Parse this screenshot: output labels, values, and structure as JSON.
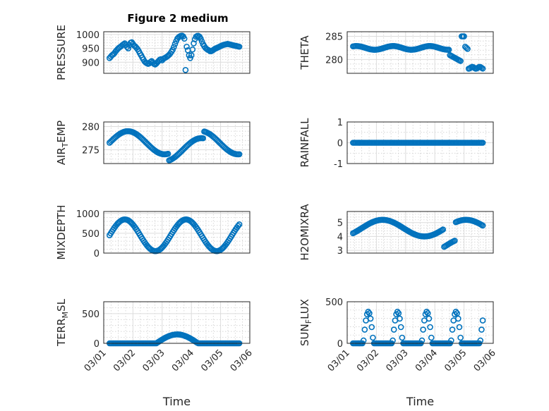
{
  "figure": {
    "title": "Figure 2 medium"
  },
  "style": {
    "marker_color": "#0072bd"
  },
  "chart_data": [
    {
      "id": "pressure",
      "type": "scatter",
      "title": "Figure 2 medium",
      "ylabel": "PRESSURE",
      "ylabel_base": "PRESSURE",
      "ylabel_sub": "",
      "ylabel_rest": "",
      "ylim": [
        860,
        1010
      ],
      "yticks": [
        900,
        950,
        1000
      ],
      "yminor": [
        870,
        880,
        890,
        910,
        920,
        930,
        940,
        960,
        970,
        980,
        990
      ],
      "xlim": [
        0,
        5
      ],
      "column": 0,
      "row": 0,
      "show_xticks": false,
      "x": [
        0.2,
        0.24,
        0.28,
        0.32,
        0.36,
        0.4,
        0.44,
        0.48,
        0.52,
        0.56,
        0.6,
        0.64,
        0.68,
        0.72,
        0.76,
        0.8,
        0.84,
        0.88,
        0.92,
        0.96,
        1.0,
        1.04,
        1.08,
        1.12,
        1.16,
        1.2,
        1.24,
        1.28,
        1.32,
        1.36,
        1.4,
        1.44,
        1.48,
        1.52,
        1.56,
        1.6,
        1.64,
        1.68,
        1.72,
        1.76,
        1.8,
        1.84,
        1.88,
        1.92,
        1.96,
        2.0,
        2.04,
        2.08,
        2.12,
        2.16,
        2.2,
        2.24,
        2.28,
        2.32,
        2.36,
        2.4,
        2.44,
        2.48,
        2.52,
        2.56,
        2.6,
        2.64,
        2.68,
        2.72,
        2.76,
        2.8,
        2.84,
        2.88,
        2.92,
        2.96,
        3.0,
        3.04,
        3.08,
        3.12,
        3.16,
        3.2,
        3.24,
        3.28,
        3.32,
        3.36,
        3.4,
        3.44,
        3.48,
        3.52,
        3.56,
        3.6,
        3.64,
        3.68,
        3.72,
        3.76,
        3.8,
        3.84,
        3.88,
        3.92,
        3.96,
        4.0,
        4.04,
        4.08,
        4.12,
        4.16,
        4.2,
        4.24,
        4.28,
        4.32,
        4.36,
        4.4,
        4.44,
        4.48,
        4.52,
        4.56,
        4.6,
        4.64
      ],
      "y": [
        915,
        920,
        925,
        928,
        932,
        938,
        943,
        948,
        952,
        955,
        958,
        962,
        965,
        968,
        962,
        955,
        950,
        962,
        970,
        972,
        966,
        960,
        957,
        952,
        947,
        940,
        932,
        925,
        917,
        910,
        903,
        899,
        896,
        894,
        896,
        901,
        904,
        899,
        894,
        892,
        895,
        900,
        905,
        909,
        911,
        907,
        912,
        915,
        917,
        920,
        923,
        927,
        932,
        938,
        945,
        955,
        966,
        976,
        985,
        990,
        993,
        995,
        996,
        993,
        985,
        872,
        956,
        943,
        925,
        915,
        925,
        946,
        968,
        983,
        992,
        995,
        995,
        992,
        985,
        975,
        965,
        958,
        952,
        948,
        945,
        943,
        940,
        940,
        942,
        945,
        948,
        950,
        952,
        954,
        956,
        958,
        960,
        962,
        963,
        964,
        965,
        966,
        965,
        964,
        963,
        962,
        961,
        960,
        959,
        958,
        957,
        956
      ],
      "xs": [
        0.2,
        0.24,
        0.28,
        0.32,
        0.36,
        0.4,
        0.44,
        0.48,
        0.52,
        0.56,
        0.6,
        0.64,
        0.68,
        0.72,
        0.76,
        0.8,
        0.84,
        0.88,
        0.92,
        0.96,
        1.0,
        1.04,
        1.08,
        1.12,
        1.16,
        1.2,
        1.24,
        1.28,
        1.32,
        1.36,
        1.4,
        1.44,
        1.48,
        1.52,
        1.56,
        1.6,
        1.64,
        1.68,
        1.72,
        1.76,
        1.8,
        1.84,
        1.88,
        1.92,
        1.96,
        2.0,
        2.04,
        2.08,
        2.12,
        2.16,
        2.2,
        2.24,
        2.28,
        2.32,
        2.36,
        2.4,
        2.44,
        2.48,
        2.52,
        2.56,
        2.6,
        2.64,
        2.68,
        2.72,
        2.76,
        2.8,
        2.84,
        2.88,
        2.92,
        2.96,
        3.0,
        3.04,
        3.08,
        3.12,
        3.16,
        3.2,
        3.24,
        3.28,
        3.32,
        3.36,
        3.4,
        3.44,
        3.48,
        3.52,
        3.56,
        3.6,
        3.64,
        3.68,
        3.72,
        3.76,
        3.8,
        3.84,
        3.88,
        3.92,
        3.96,
        4.0,
        4.04,
        4.08,
        4.12,
        4.16,
        4.2,
        4.24,
        4.28,
        4.32,
        4.36,
        4.4,
        4.44,
        4.48,
        4.52,
        4.56,
        4.6,
        4.64
      ]
    }
  ]
}
